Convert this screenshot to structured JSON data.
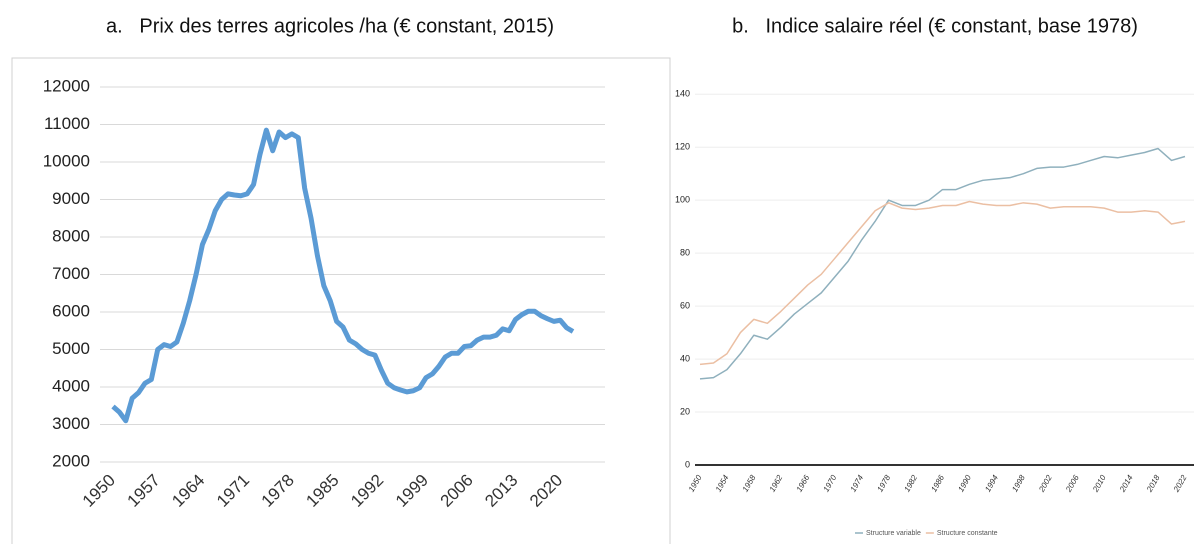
{
  "chart_data": [
    {
      "type": "line",
      "title": "a.   Prix des terres agricoles /ha (€ constant, 2015)",
      "x": [
        1950,
        1951,
        1952,
        1953,
        1954,
        1955,
        1956,
        1957,
        1958,
        1959,
        1960,
        1961,
        1962,
        1963,
        1964,
        1965,
        1966,
        1967,
        1968,
        1969,
        1970,
        1971,
        1972,
        1973,
        1974,
        1975,
        1976,
        1977,
        1978,
        1979,
        1980,
        1981,
        1982,
        1983,
        1984,
        1985,
        1986,
        1987,
        1988,
        1989,
        1990,
        1991,
        1992,
        1993,
        1994,
        1995,
        1996,
        1997,
        1998,
        1999,
        2000,
        2001,
        2002,
        2003,
        2004,
        2005,
        2006,
        2007,
        2008,
        2009,
        2010,
        2011,
        2012,
        2013,
        2014,
        2015,
        2016,
        2017,
        2018,
        2019,
        2020,
        2021,
        2022
      ],
      "series": [
        {
          "name": null,
          "color": "#5b9bd5",
          "values": [
            3480,
            3330,
            3100,
            3700,
            3850,
            4100,
            4200,
            5000,
            5130,
            5080,
            5200,
            5700,
            6300,
            7000,
            7800,
            8200,
            8700,
            9000,
            9150,
            9120,
            9100,
            9150,
            9400,
            10200,
            10850,
            10300,
            10800,
            10650,
            10750,
            10650,
            9300,
            8500,
            7500,
            6700,
            6300,
            5750,
            5600,
            5250,
            5150,
            5000,
            4900,
            4850,
            4450,
            4100,
            3980,
            3920,
            3870,
            3900,
            3980,
            4250,
            4350,
            4550,
            4800,
            4900,
            4900,
            5080,
            5100,
            5250,
            5330,
            5330,
            5380,
            5550,
            5500,
            5800,
            5930,
            6020,
            6020,
            5900,
            5820,
            5750,
            5780,
            5580,
            5480
          ]
        }
      ],
      "xlim": [
        1950,
        2022
      ],
      "xticks": [
        1950,
        1957,
        1964,
        1971,
        1978,
        1985,
        1992,
        1999,
        2006,
        2013,
        2020
      ],
      "ylim": [
        2000,
        12000
      ],
      "yticks": [
        2000,
        3000,
        4000,
        5000,
        6000,
        7000,
        8000,
        9000,
        10000,
        11000,
        12000
      ],
      "grid": true
    },
    {
      "type": "line",
      "title": "b.   Indice salaire réel (€ constant, base 1978)",
      "x": [
        1950,
        1952,
        1954,
        1956,
        1958,
        1960,
        1962,
        1964,
        1966,
        1968,
        1970,
        1972,
        1974,
        1976,
        1978,
        1980,
        1982,
        1984,
        1986,
        1988,
        1990,
        1992,
        1994,
        1996,
        1998,
        2000,
        2002,
        2004,
        2006,
        2008,
        2010,
        2012,
        2014,
        2016,
        2018,
        2020,
        2022
      ],
      "series": [
        {
          "name": "Structure variable",
          "color": "#8fb0bd",
          "values": [
            32.5,
            33,
            36,
            42,
            49,
            47.5,
            52,
            57,
            61,
            65,
            71,
            77,
            85,
            92,
            100,
            98,
            98,
            100,
            104,
            104,
            106,
            107.5,
            108,
            108.5,
            110,
            112,
            112.5,
            112.5,
            113.5,
            115,
            116.5,
            116,
            117,
            118,
            119.5,
            115,
            116.5
          ]
        },
        {
          "name": "Structure constante",
          "color": "#ebbfa3",
          "values": [
            38,
            38.5,
            42,
            50,
            55,
            53.5,
            58,
            63,
            68,
            72,
            78,
            84,
            90,
            96,
            99,
            97,
            96.5,
            97,
            98,
            98,
            99.5,
            98.5,
            98,
            98,
            99,
            98.5,
            97,
            97.5,
            97.5,
            97.5,
            97,
            95.5,
            95.5,
            96,
            95.5,
            91,
            92
          ]
        }
      ],
      "xlim": [
        1950,
        2022
      ],
      "xticks": [
        1950,
        1954,
        1958,
        1962,
        1966,
        1970,
        1974,
        1978,
        1982,
        1986,
        1990,
        1994,
        1998,
        2002,
        2006,
        2010,
        2014,
        2018,
        2022
      ],
      "ylim": [
        0,
        145
      ],
      "yticks": [
        0,
        20,
        40,
        60,
        80,
        100,
        120,
        140
      ],
      "grid": true,
      "legend": "bottom"
    }
  ]
}
